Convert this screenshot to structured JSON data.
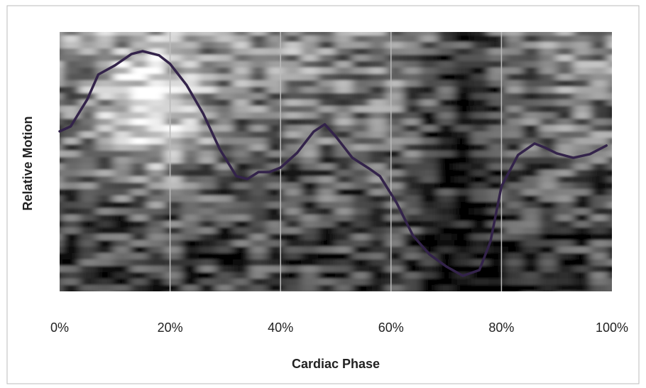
{
  "chart_data": {
    "type": "line",
    "x_label": "Cardiac Phase",
    "y_label": "Relative Motion",
    "x": [
      0,
      2,
      5,
      7,
      10,
      13,
      15,
      18,
      20,
      23,
      26,
      29,
      32,
      34,
      36,
      38,
      40,
      43,
      46,
      48,
      50,
      53,
      56,
      58,
      61,
      64,
      67,
      70,
      73,
      76,
      78,
      80,
      83,
      86,
      88,
      90,
      93,
      96,
      99
    ],
    "series": [
      {
        "color": "#33234a",
        "values": [
          0.617,
          0.636,
          0.74,
          0.836,
          0.871,
          0.915,
          0.926,
          0.91,
          0.877,
          0.795,
          0.685,
          0.548,
          0.444,
          0.433,
          0.46,
          0.46,
          0.477,
          0.534,
          0.616,
          0.644,
          0.597,
          0.515,
          0.474,
          0.444,
          0.342,
          0.214,
          0.142,
          0.096,
          0.06,
          0.082,
          0.192,
          0.405,
          0.526,
          0.57,
          0.553,
          0.532,
          0.515,
          0.529,
          0.562
        ]
      }
    ],
    "xlim": [
      0,
      100
    ],
    "ylim": [
      0,
      1
    ],
    "xticks": [
      {
        "value": 0,
        "label": "0%"
      },
      {
        "value": 20,
        "label": "20%"
      },
      {
        "value": 40,
        "label": "40%"
      },
      {
        "value": 60,
        "label": "60%"
      },
      {
        "value": 80,
        "label": "80%"
      },
      {
        "value": 100,
        "label": "100%"
      }
    ],
    "grid": true
  }
}
